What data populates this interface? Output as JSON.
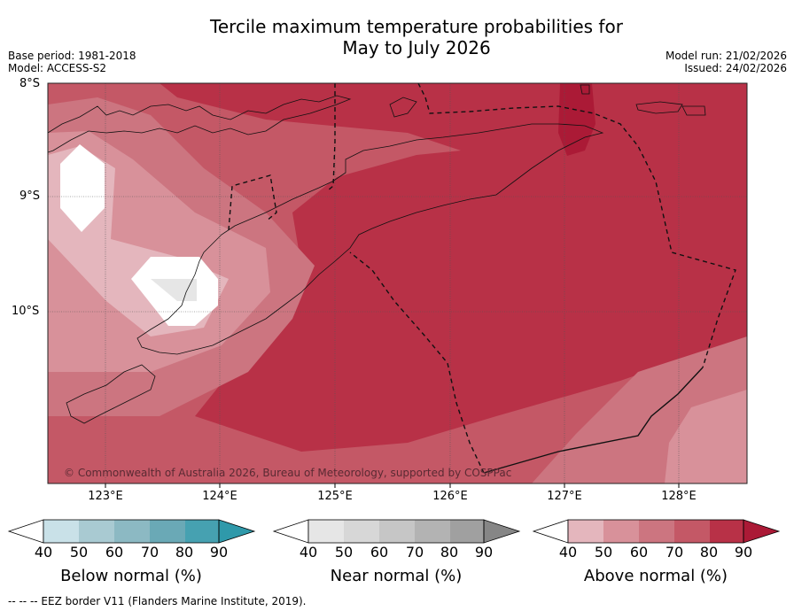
{
  "title_line1": "Tercile maximum temperature probabilities for",
  "title_line2": "May to July 2026",
  "meta": {
    "base_period": "Base period: 1981-2018",
    "model": "Model: ACCESS-S2",
    "model_run": "Model run: 21/02/2026",
    "issued": "Issued: 24/02/2026"
  },
  "axes": {
    "lat_labels": [
      "8°S",
      "9°S",
      "10°S"
    ],
    "lon_labels": [
      "123°E",
      "124°E",
      "125°E",
      "126°E",
      "127°E",
      "128°E"
    ]
  },
  "copyright": "© Commonwealth of Australia 2026, Bureau of Meteorology, supported by COSPPac",
  "colorbars": {
    "below": {
      "label": "Below normal (%)",
      "ticks": [
        "40",
        "50",
        "60",
        "70",
        "80",
        "90"
      ],
      "colors": [
        "#c9e1e8",
        "#a9cad2",
        "#8cb9c3",
        "#6aa9b6",
        "#46a1b1",
        "#2f99aa"
      ]
    },
    "near": {
      "label": "Near normal (%)",
      "ticks": [
        "40",
        "50",
        "60",
        "70",
        "80",
        "90"
      ],
      "colors": [
        "#e6e6e6",
        "#d7d7d7",
        "#c6c6c6",
        "#b3b3b3",
        "#a0a0a0",
        "#868686"
      ]
    },
    "above": {
      "label": "Above normal (%)",
      "ticks": [
        "40",
        "50",
        "60",
        "70",
        "80",
        "90"
      ],
      "colors": [
        "#e4b6bd",
        "#d8919a",
        "#cc7580",
        "#c45866",
        "#b83147",
        "#ab1a36"
      ]
    }
  },
  "footer": "--  --  -- EEZ border V11 (Flanders Marine Institute, 2019)."
}
